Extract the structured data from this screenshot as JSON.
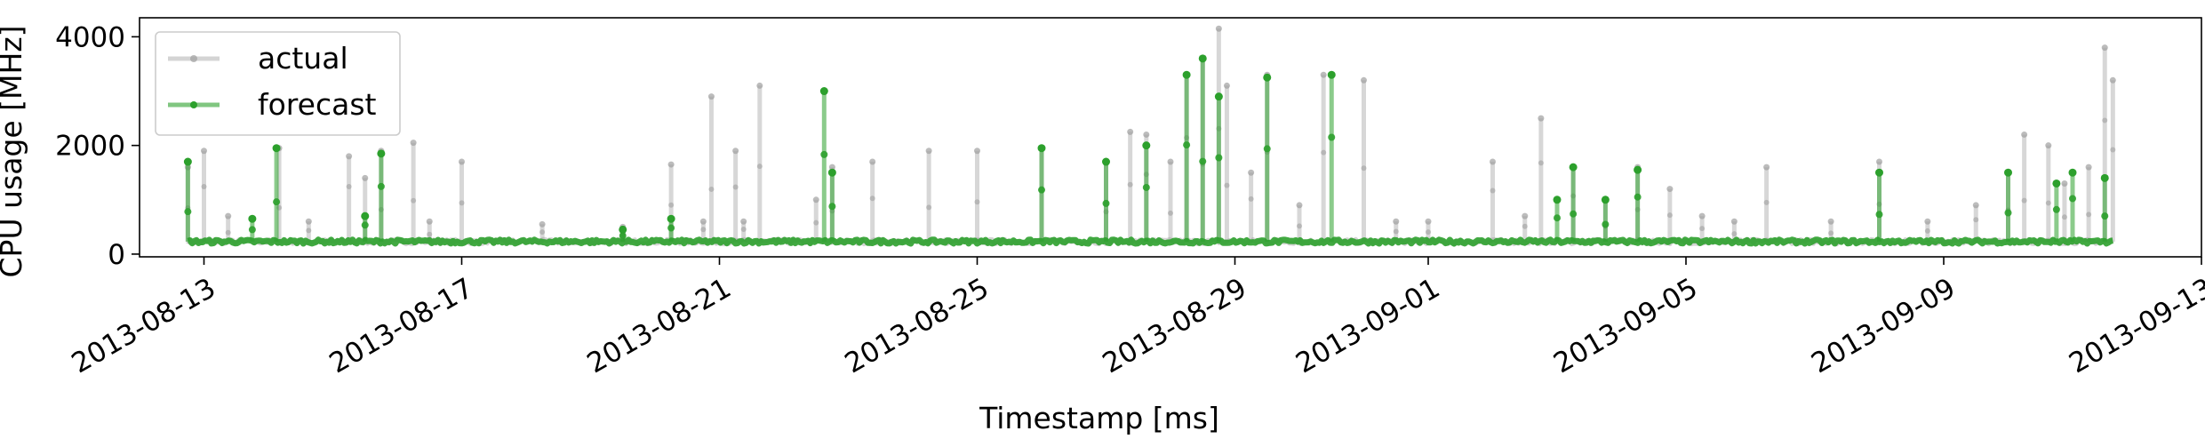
{
  "chart_data": {
    "type": "line",
    "xlabel": "Timestamp [ms]",
    "ylabel": "CPU usage [MHz]",
    "ylim": [
      -50,
      4350
    ],
    "xlim": [
      "2013-08-12 00:00",
      "2013-09-13 00:00"
    ],
    "x_ticks": [
      "2013-08-13",
      "2013-08-17",
      "2013-08-21",
      "2013-08-25",
      "2013-08-29",
      "2013-09-01",
      "2013-09-05",
      "2013-09-09",
      "2013-09-13"
    ],
    "y_ticks": [
      0,
      2000,
      4000
    ],
    "grid": false,
    "legend": {
      "position": "upper-left",
      "entries": [
        "actual",
        "forecast"
      ]
    },
    "baseline_mhz": 230,
    "series": [
      {
        "name": "actual",
        "color": "#a0a0a0",
        "spikes": [
          {
            "t": "2013-08-12 18:00",
            "v": 1600
          },
          {
            "t": "2013-08-13 00:00",
            "v": 1900
          },
          {
            "t": "2013-08-13 09:00",
            "v": 700
          },
          {
            "t": "2013-08-14 04:00",
            "v": 1950
          },
          {
            "t": "2013-08-14 15:00",
            "v": 600
          },
          {
            "t": "2013-08-15 06:00",
            "v": 1800
          },
          {
            "t": "2013-08-15 12:00",
            "v": 1400
          },
          {
            "t": "2013-08-15 18:00",
            "v": 1900
          },
          {
            "t": "2013-08-16 06:00",
            "v": 2050
          },
          {
            "t": "2013-08-16 12:00",
            "v": 600
          },
          {
            "t": "2013-08-17 00:00",
            "v": 1700
          },
          {
            "t": "2013-08-18 06:00",
            "v": 550
          },
          {
            "t": "2013-08-19 12:00",
            "v": 500
          },
          {
            "t": "2013-08-20 06:00",
            "v": 1650
          },
          {
            "t": "2013-08-20 18:00",
            "v": 600
          },
          {
            "t": "2013-08-20 21:00",
            "v": 2900
          },
          {
            "t": "2013-08-21 06:00",
            "v": 1900
          },
          {
            "t": "2013-08-21 09:00",
            "v": 600
          },
          {
            "t": "2013-08-21 15:00",
            "v": 3100
          },
          {
            "t": "2013-08-22 12:00",
            "v": 1000
          },
          {
            "t": "2013-08-22 18:00",
            "v": 1600
          },
          {
            "t": "2013-08-23 09:00",
            "v": 1700
          },
          {
            "t": "2013-08-24 06:00",
            "v": 1900
          },
          {
            "t": "2013-08-25 00:00",
            "v": 1900
          },
          {
            "t": "2013-08-26 00:00",
            "v": 1950
          },
          {
            "t": "2013-08-27 00:00",
            "v": 1700
          },
          {
            "t": "2013-08-27 09:00",
            "v": 2250
          },
          {
            "t": "2013-08-27 15:00",
            "v": 2200
          },
          {
            "t": "2013-08-28 00:00",
            "v": 1700
          },
          {
            "t": "2013-08-28 06:00",
            "v": 3300
          },
          {
            "t": "2013-08-28 12:00",
            "v": 3600
          },
          {
            "t": "2013-08-28 18:00",
            "v": 4150
          },
          {
            "t": "2013-08-28 21:00",
            "v": 3100
          },
          {
            "t": "2013-08-29 06:00",
            "v": 1500
          },
          {
            "t": "2013-08-29 12:00",
            "v": 3300
          },
          {
            "t": "2013-08-30 00:00",
            "v": 900
          },
          {
            "t": "2013-08-30 09:00",
            "v": 3300
          },
          {
            "t": "2013-08-31 00:00",
            "v": 3200
          },
          {
            "t": "2013-08-31 12:00",
            "v": 600
          },
          {
            "t": "2013-09-01 00:00",
            "v": 600
          },
          {
            "t": "2013-09-02 00:00",
            "v": 1700
          },
          {
            "t": "2013-09-02 12:00",
            "v": 700
          },
          {
            "t": "2013-09-02 18:00",
            "v": 2500
          },
          {
            "t": "2013-09-03 06:00",
            "v": 1600
          },
          {
            "t": "2013-09-03 18:00",
            "v": 1000
          },
          {
            "t": "2013-09-04 06:00",
            "v": 1600
          },
          {
            "t": "2013-09-04 18:00",
            "v": 1200
          },
          {
            "t": "2013-09-05 06:00",
            "v": 700
          },
          {
            "t": "2013-09-05 18:00",
            "v": 600
          },
          {
            "t": "2013-09-06 06:00",
            "v": 1600
          },
          {
            "t": "2013-09-07 06:00",
            "v": 600
          },
          {
            "t": "2013-09-08 00:00",
            "v": 1700
          },
          {
            "t": "2013-09-08 18:00",
            "v": 600
          },
          {
            "t": "2013-09-09 12:00",
            "v": 900
          },
          {
            "t": "2013-09-10 00:00",
            "v": 1500
          },
          {
            "t": "2013-09-10 06:00",
            "v": 2200
          },
          {
            "t": "2013-09-10 15:00",
            "v": 2000
          },
          {
            "t": "2013-09-10 21:00",
            "v": 1300
          },
          {
            "t": "2013-09-11 06:00",
            "v": 1600
          },
          {
            "t": "2013-09-11 12:00",
            "v": 3800
          },
          {
            "t": "2013-09-11 15:00",
            "v": 3200
          }
        ]
      },
      {
        "name": "forecast",
        "color": "#2ca02c",
        "spikes": [
          {
            "t": "2013-08-12 18:00",
            "v": 1700
          },
          {
            "t": "2013-08-13 18:00",
            "v": 650
          },
          {
            "t": "2013-08-14 03:00",
            "v": 1950
          },
          {
            "t": "2013-08-15 12:00",
            "v": 700
          },
          {
            "t": "2013-08-15 18:00",
            "v": 1850
          },
          {
            "t": "2013-08-19 12:00",
            "v": 450
          },
          {
            "t": "2013-08-20 06:00",
            "v": 650
          },
          {
            "t": "2013-08-22 15:00",
            "v": 3000
          },
          {
            "t": "2013-08-22 18:00",
            "v": 1500
          },
          {
            "t": "2013-08-26 00:00",
            "v": 1950
          },
          {
            "t": "2013-08-27 00:00",
            "v": 1700
          },
          {
            "t": "2013-08-27 15:00",
            "v": 2000
          },
          {
            "t": "2013-08-28 06:00",
            "v": 3300
          },
          {
            "t": "2013-08-28 12:00",
            "v": 3600
          },
          {
            "t": "2013-08-28 18:00",
            "v": 2900
          },
          {
            "t": "2013-08-29 12:00",
            "v": 3250
          },
          {
            "t": "2013-08-30 12:00",
            "v": 3300
          },
          {
            "t": "2013-09-03 00:00",
            "v": 1000
          },
          {
            "t": "2013-09-03 06:00",
            "v": 1600
          },
          {
            "t": "2013-09-03 18:00",
            "v": 1000
          },
          {
            "t": "2013-09-04 06:00",
            "v": 1550
          },
          {
            "t": "2013-09-08 00:00",
            "v": 1500
          },
          {
            "t": "2013-09-10 00:00",
            "v": 1500
          },
          {
            "t": "2013-09-10 18:00",
            "v": 1300
          },
          {
            "t": "2013-09-11 00:00",
            "v": 1500
          },
          {
            "t": "2013-09-11 12:00",
            "v": 1400
          }
        ]
      }
    ]
  }
}
